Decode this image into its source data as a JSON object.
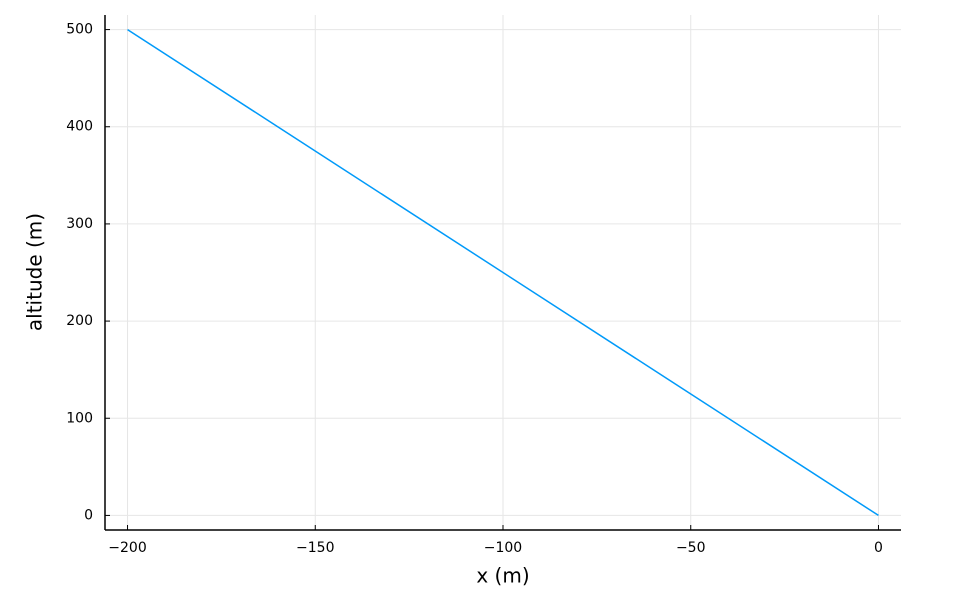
{
  "chart_data": {
    "type": "line",
    "x_label": "x (m)",
    "y_label": "altitude (m)",
    "x": [
      -200,
      0
    ],
    "values": [
      500,
      0
    ],
    "color": "#009af9",
    "xlim": [
      -206,
      6
    ],
    "ylim": [
      -15,
      515
    ],
    "xticks": [
      {
        "value": -200,
        "label": "−200"
      },
      {
        "value": -150,
        "label": "−150"
      },
      {
        "value": -100,
        "label": "−100"
      },
      {
        "value": -50,
        "label": "−50"
      },
      0
    ],
    "yticks": [
      0,
      100,
      200,
      300,
      400,
      500
    ],
    "grid": true
  }
}
